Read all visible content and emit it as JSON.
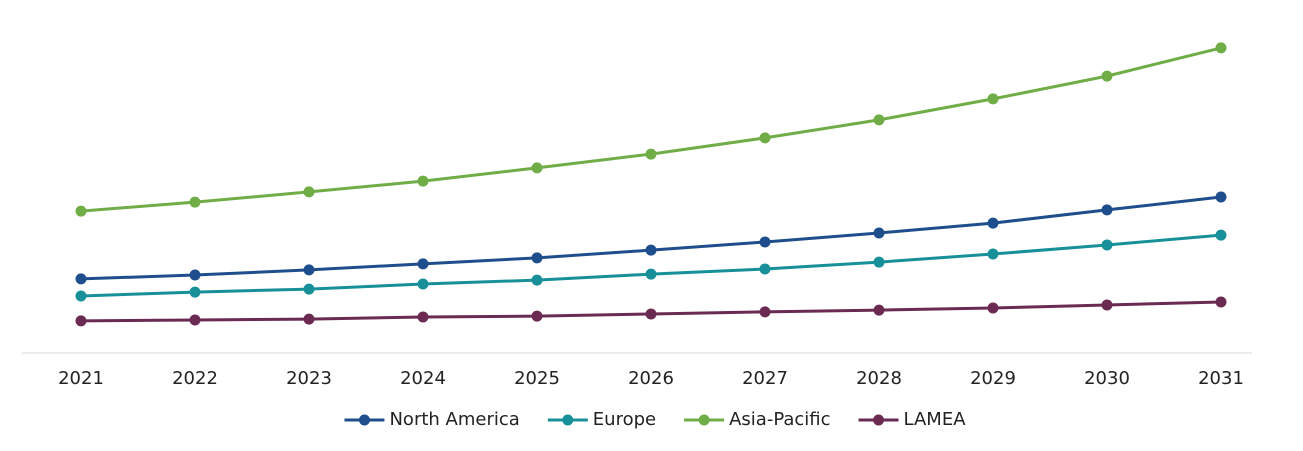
{
  "chart_data": {
    "type": "line",
    "categories": [
      "2021",
      "2022",
      "2023",
      "2024",
      "2025",
      "2026",
      "2027",
      "2028",
      "2029",
      "2030",
      "2031"
    ],
    "series": [
      {
        "name": "North America",
        "color": "#1f4e8c",
        "values": [
          24.7,
          26,
          27.7,
          29.7,
          31.7,
          34.3,
          37,
          40,
          43.3,
          47.7,
          52
        ]
      },
      {
        "name": "Europe",
        "color": "#17909a",
        "values": [
          19,
          20.3,
          21.3,
          23,
          24.3,
          26.3,
          28,
          30.3,
          33,
          36,
          39.3
        ]
      },
      {
        "name": "Asia-Pacific",
        "color": "#70ad47",
        "values": [
          47.3,
          50.3,
          53.7,
          57.3,
          61.7,
          66.3,
          71.7,
          77.7,
          84.7,
          92.3,
          101.7
        ]
      },
      {
        "name": "LAMEA",
        "color": "#6b2a52",
        "values": [
          10.7,
          11,
          11.3,
          12,
          12.3,
          13,
          13.7,
          14.3,
          15,
          16,
          17
        ]
      }
    ],
    "ylim": [
      0,
      110
    ],
    "legend": "bottom"
  }
}
